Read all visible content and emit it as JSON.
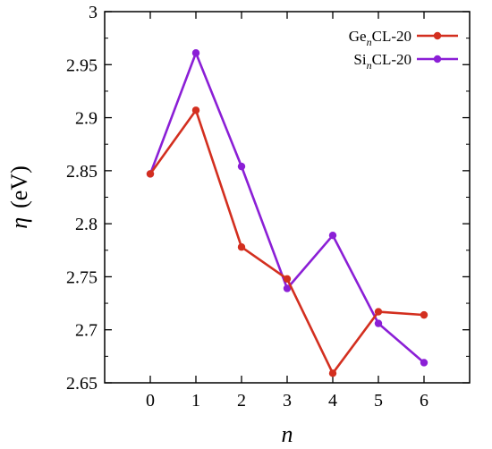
{
  "chart_data": {
    "type": "line",
    "title": "",
    "xlabel": "n",
    "ylabel": {
      "symbol": "η",
      "unit": "(eV)"
    },
    "x": [
      0,
      1,
      2,
      3,
      4,
      5,
      6
    ],
    "xlim": [
      -1,
      7
    ],
    "ylim": [
      2.65,
      3.0
    ],
    "xticks": [
      "0",
      "1",
      "2",
      "3",
      "4",
      "5",
      "6"
    ],
    "yticks": [
      "2.65",
      "2.7",
      "2.75",
      "2.8",
      "2.85",
      "2.9",
      "2.95",
      "3"
    ],
    "grid": false,
    "legend_position": "top-right",
    "series": [
      {
        "name": "GenCL-20",
        "legend": {
          "base": "Ge",
          "sub": "n",
          "rest": "CL-20"
        },
        "color": "#d32f1f",
        "values": [
          2.847,
          2.907,
          2.778,
          2.748,
          2.659,
          2.717,
          2.714
        ]
      },
      {
        "name": "SinCL-20",
        "legend": {
          "base": "Si",
          "sub": "n",
          "rest": "CL-20"
        },
        "color": "#8b1fd6",
        "values": [
          2.847,
          2.961,
          2.854,
          2.739,
          2.789,
          2.706,
          2.669
        ]
      }
    ]
  }
}
